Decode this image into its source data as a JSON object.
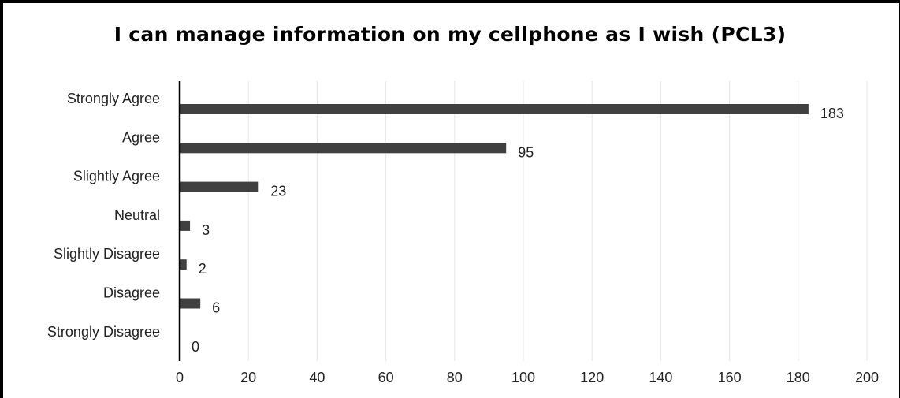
{
  "chart_data": {
    "type": "bar",
    "orientation": "horizontal",
    "title": "I can manage information on my cellphone as I wish (PCL3)",
    "categories": [
      "Strongly Agree",
      "Agree",
      "Slightly Agree",
      "Neutral",
      "Slightly Disagree",
      "Disagree",
      "Strongly Disagree"
    ],
    "values": [
      183,
      95,
      23,
      3,
      2,
      6,
      0
    ],
    "xlim": [
      0,
      200
    ],
    "xticks": [
      0,
      20,
      40,
      60,
      80,
      100,
      120,
      140,
      160,
      180,
      200
    ],
    "grid": true,
    "legend": "none",
    "bar_color": "#404040"
  }
}
